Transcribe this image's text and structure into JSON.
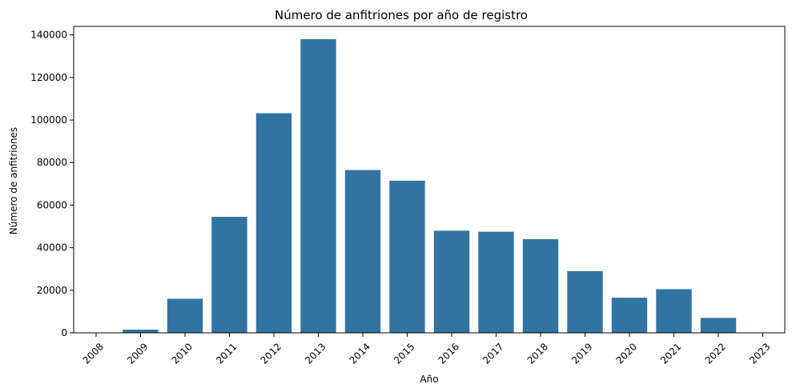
{
  "chart_data": {
    "type": "bar",
    "title": "Número de anfitriones por año de registro",
    "xlabel": "Año",
    "ylabel": "Número de anfitriones",
    "categories": [
      "2008",
      "2009",
      "2010",
      "2011",
      "2012",
      "2013",
      "2014",
      "2015",
      "2016",
      "2017",
      "2018",
      "2019",
      "2020",
      "2021",
      "2022",
      "2023"
    ],
    "values": [
      100,
      1500,
      16000,
      54500,
      103200,
      138000,
      76500,
      71500,
      48000,
      47500,
      44000,
      29000,
      16500,
      20500,
      7000,
      100
    ],
    "ylim": [
      0,
      144000
    ],
    "yticks": [
      0,
      20000,
      40000,
      60000,
      80000,
      100000,
      120000,
      140000
    ],
    "ytick_labels": [
      "0",
      "20000",
      "40000",
      "60000",
      "80000",
      "100000",
      "120000",
      "140000"
    ],
    "bar_color": "#3274a1",
    "grid": false,
    "legend": "none"
  }
}
